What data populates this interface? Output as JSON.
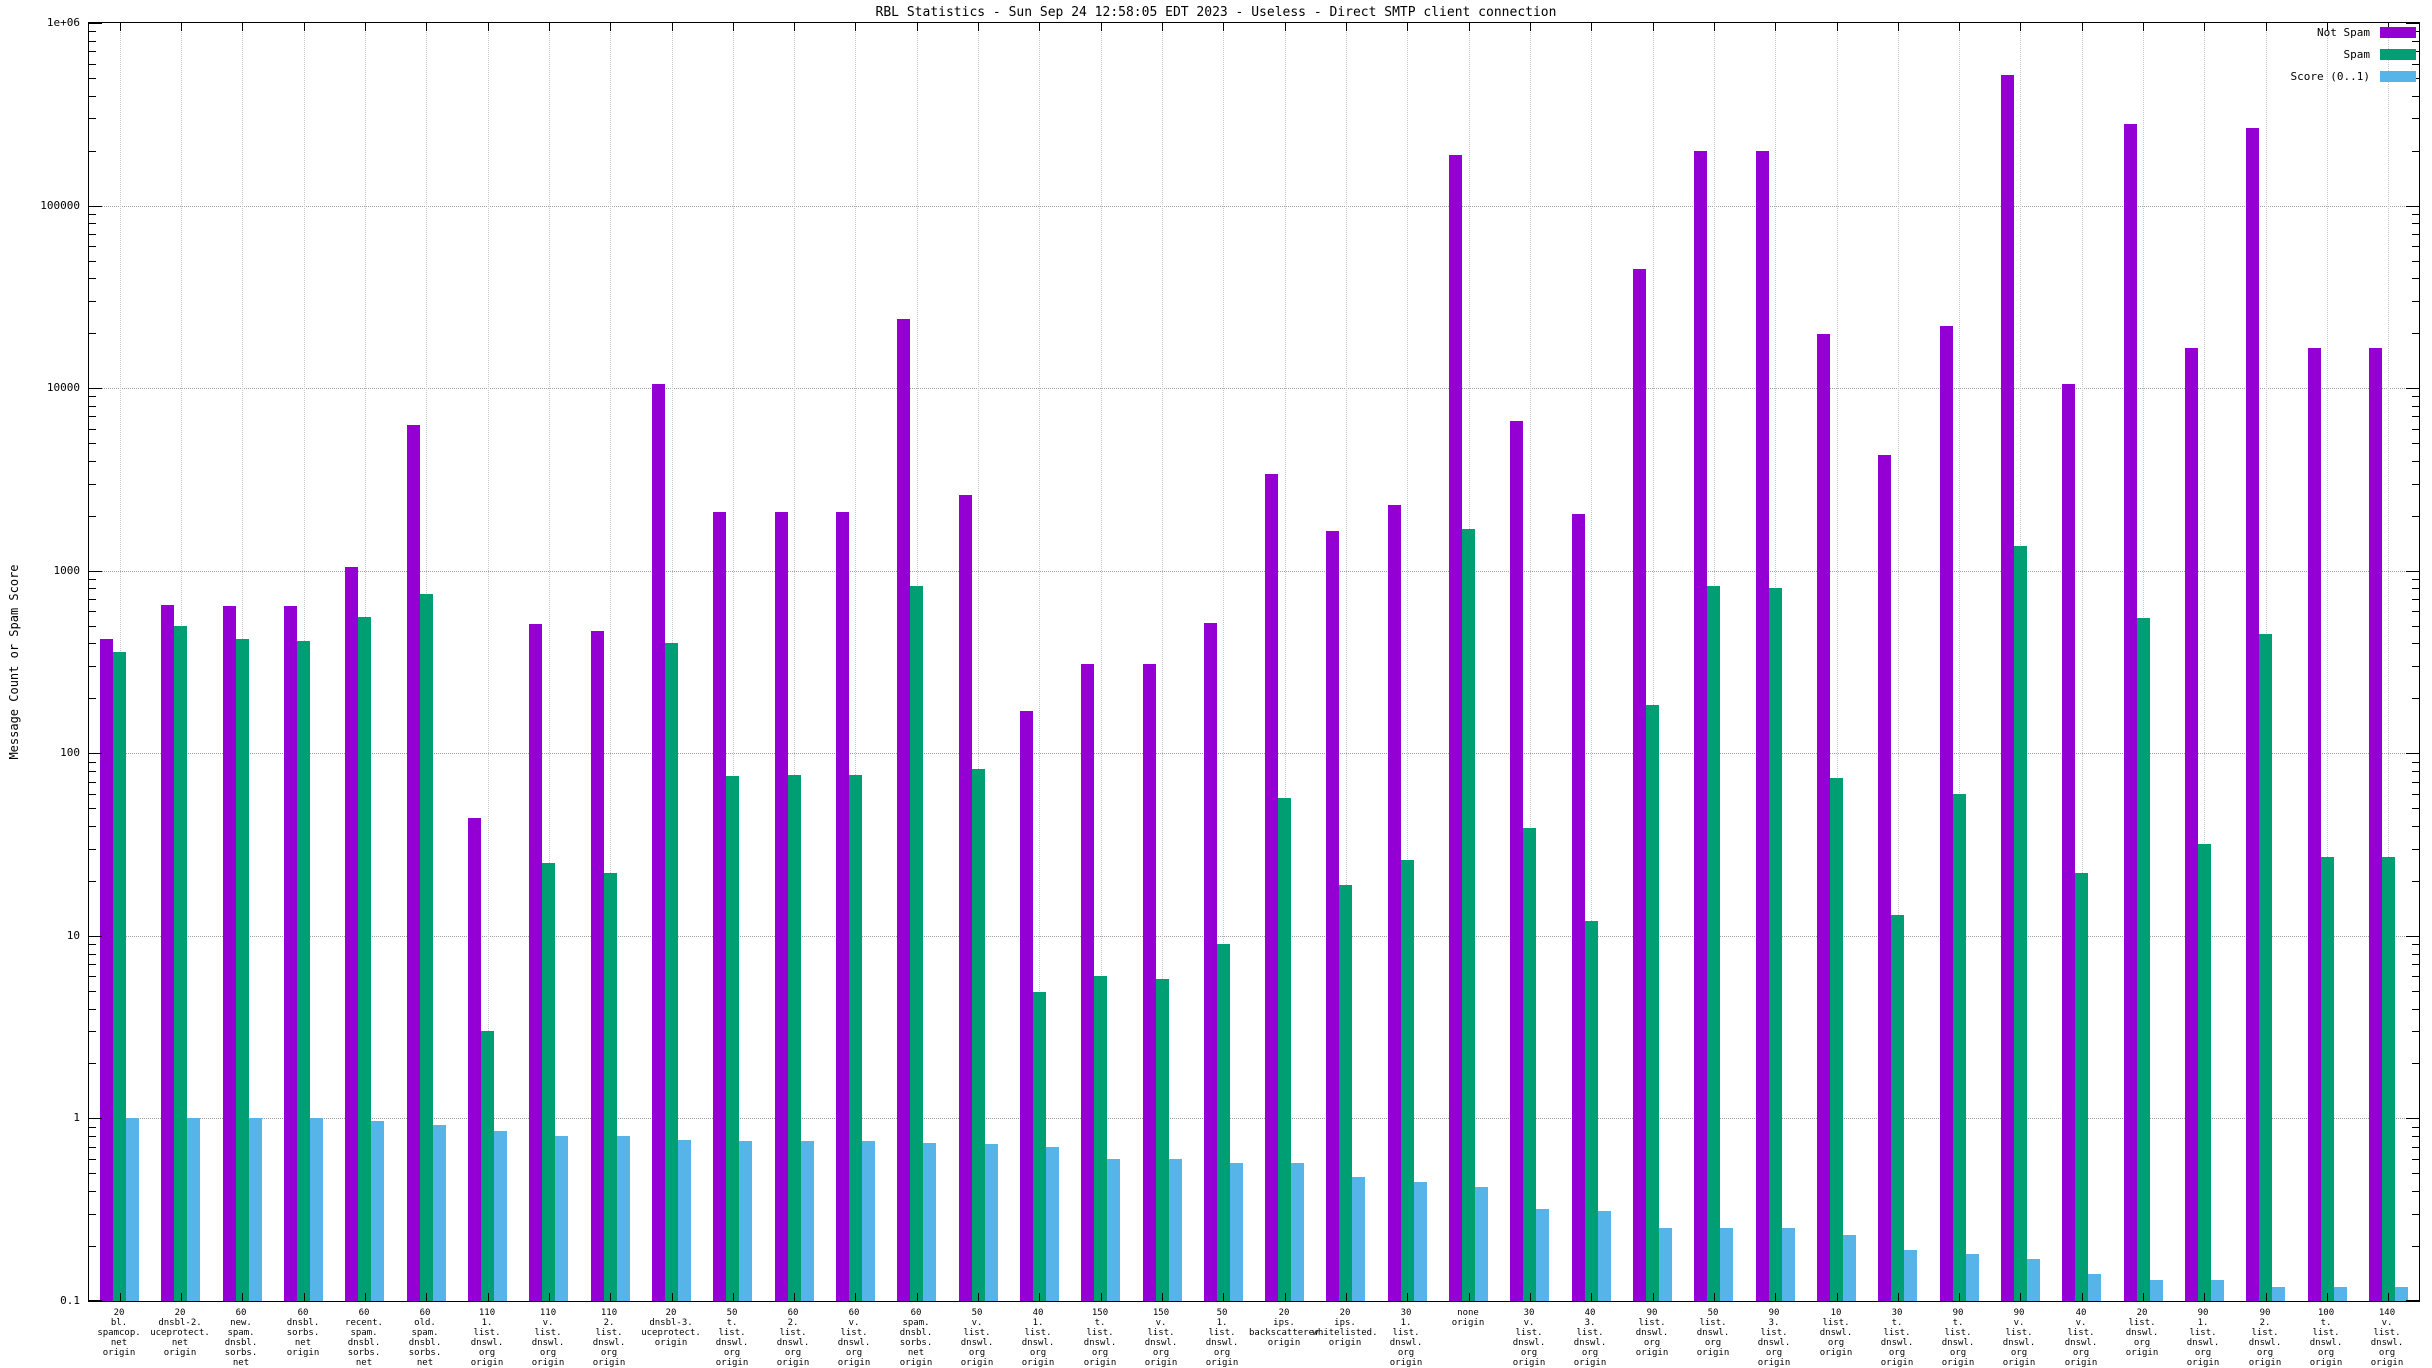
{
  "title": "RBL Statistics - Sun Sep 24 12:58:05 EDT 2023 - Useless - Direct SMTP client connection",
  "y_axis_label": "Message Count or Spam Score",
  "legend": [
    {
      "label": "Not Spam",
      "color": "#9400d3"
    },
    {
      "label": "Spam",
      "color": "#009e73"
    },
    {
      "label": "Score (0..1)",
      "color": "#56b4e9"
    }
  ],
  "colors": {
    "not_spam": "#9400d3",
    "spam": "#009e73",
    "score": "#56b4e9",
    "grid": "#a0a0a0",
    "axis": "#000000",
    "background": "#ffffff"
  },
  "chart_data": {
    "type": "bar",
    "scale": "log",
    "ylim": [
      0.1,
      1000000
    ],
    "grid": true,
    "legend_position": "top-right",
    "y_tick_labels": [
      "0.1",
      "1",
      "10",
      "100",
      "1000",
      "10000",
      "100000",
      "1e+06"
    ],
    "title": "RBL Statistics - Sun Sep 24 12:58:05 EDT 2023 - Useless - Direct SMTP client connection",
    "xlabel": "",
    "ylabel": "Message Count or Spam Score",
    "categories": [
      [
        "20",
        "bl.",
        "spamcop.",
        "net",
        "origin"
      ],
      [
        "20",
        "dnsbl-2.",
        "uceprotect.",
        "net",
        "origin"
      ],
      [
        "60",
        "new.",
        "spam.",
        "dnsbl.",
        "sorbs.",
        "net",
        "origin"
      ],
      [
        "60",
        "dnsbl.",
        "sorbs.",
        "net",
        "origin"
      ],
      [
        "60",
        "recent.",
        "spam.",
        "dnsbl.",
        "sorbs.",
        "net",
        "origin"
      ],
      [
        "60",
        "old.",
        "spam.",
        "dnsbl.",
        "sorbs.",
        "net",
        "origin"
      ],
      [
        "110",
        "1.",
        "list.",
        "dnswl.",
        "org",
        "origin"
      ],
      [
        "110",
        "v.",
        "list.",
        "dnswl.",
        "org",
        "origin"
      ],
      [
        "110",
        "2.",
        "list.",
        "dnswl.",
        "org",
        "origin"
      ],
      [
        "20",
        "dnsbl-3.",
        "uceprotect.",
        "origin"
      ],
      [
        "50",
        "t.",
        "list.",
        "dnswl.",
        "org",
        "origin"
      ],
      [
        "60",
        "2.",
        "list.",
        "dnswl.",
        "org",
        "origin"
      ],
      [
        "60",
        "v.",
        "list.",
        "dnswl.",
        "org",
        "origin"
      ],
      [
        "60",
        "spam.",
        "dnsbl.",
        "sorbs.",
        "net",
        "origin"
      ],
      [
        "50",
        "v.",
        "list.",
        "dnswl.",
        "org",
        "origin"
      ],
      [
        "40",
        "1.",
        "list.",
        "dnswl.",
        "org",
        "origin"
      ],
      [
        "150",
        "t.",
        "list.",
        "dnswl.",
        "org",
        "origin"
      ],
      [
        "150",
        "v.",
        "list.",
        "dnswl.",
        "org",
        "origin"
      ],
      [
        "50",
        "1.",
        "list.",
        "dnswl.",
        "org",
        "origin"
      ],
      [
        "20",
        "ips.",
        "backscatterer.",
        "origin"
      ],
      [
        "20",
        "ips.",
        "whitelisted.",
        "origin"
      ],
      [
        "30",
        "1.",
        "list.",
        "dnswl.",
        "org",
        "origin"
      ],
      [
        "none",
        "origin"
      ],
      [
        "30",
        "v.",
        "list.",
        "dnswl.",
        "org",
        "origin"
      ],
      [
        "40",
        "3.",
        "list.",
        "dnswl.",
        "org",
        "origin"
      ],
      [
        "90",
        "list.",
        "dnswl.",
        "org",
        "origin"
      ],
      [
        "50",
        "list.",
        "dnswl.",
        "org",
        "origin"
      ],
      [
        "90",
        "3.",
        "list.",
        "dnswl.",
        "org",
        "origin"
      ],
      [
        "10",
        "list.",
        "dnswl.",
        "org",
        "origin"
      ],
      [
        "30",
        "t.",
        "list.",
        "dnswl.",
        "org",
        "origin"
      ],
      [
        "90",
        "t.",
        "list.",
        "dnswl.",
        "org",
        "origin"
      ],
      [
        "90",
        "v.",
        "list.",
        "dnswl.",
        "org",
        "origin"
      ],
      [
        "40",
        "v.",
        "list.",
        "dnswl.",
        "org",
        "origin"
      ],
      [
        "20",
        "list.",
        "dnswl.",
        "org",
        "origin"
      ],
      [
        "90",
        "1.",
        "list.",
        "dnswl.",
        "org",
        "origin"
      ],
      [
        "90",
        "2.",
        "list.",
        "dnswl.",
        "org",
        "origin"
      ],
      [
        "100",
        "t.",
        "list.",
        "dnswl.",
        "org",
        "origin"
      ],
      [
        "140",
        "v.",
        "list.",
        "dnswl.",
        "org",
        "origin"
      ]
    ],
    "series": [
      {
        "name": "Not Spam",
        "color": "#9400d3",
        "values": [
          420,
          650,
          640,
          640,
          1050,
          6300,
          44,
          510,
          470,
          10500,
          2100,
          2100,
          2100,
          24000,
          2600,
          170,
          310,
          310,
          520,
          3400,
          1650,
          2300,
          190000,
          6600,
          2050,
          45000,
          200000,
          200000,
          19800,
          4300,
          21800,
          520000,
          10500,
          280000,
          16500,
          265000,
          16500,
          16500
        ]
      },
      {
        "name": "Spam",
        "color": "#009e73",
        "values": [
          360,
          500,
          420,
          410,
          560,
          750,
          3,
          25,
          22,
          400,
          75,
          76,
          76,
          820,
          82,
          4.9,
          6,
          5.8,
          9,
          57,
          19,
          26,
          1700,
          39,
          12,
          185,
          820,
          800,
          73,
          13,
          60,
          1370,
          22,
          550,
          32,
          450,
          27,
          27
        ]
      },
      {
        "name": "Score (0..1)",
        "color": "#56b4e9",
        "values": [
          1.0,
          1.0,
          1.0,
          1.0,
          0.97,
          0.92,
          0.85,
          0.8,
          0.8,
          0.76,
          0.75,
          0.75,
          0.75,
          0.73,
          0.72,
          0.7,
          0.6,
          0.6,
          0.57,
          0.57,
          0.48,
          0.45,
          0.42,
          0.32,
          0.31,
          0.25,
          0.25,
          0.25,
          0.23,
          0.19,
          0.18,
          0.17,
          0.14,
          0.13,
          0.13,
          0.12,
          0.12,
          0.12
        ]
      }
    ]
  }
}
